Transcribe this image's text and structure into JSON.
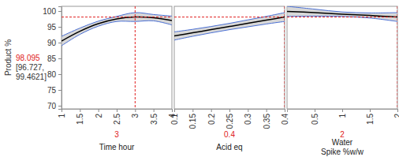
{
  "chart_data": {
    "type": "line",
    "ylabel": "Product %",
    "ylim": [
      69,
      101.5
    ],
    "yticks": [
      70,
      75,
      80,
      85,
      90,
      95,
      100
    ],
    "prediction": 98.095,
    "prediction_label": "98.095",
    "interval_label": [
      "[96.727,",
      "99.4621]"
    ],
    "color": "#000000",
    "band_color": "#4a6fd4",
    "marker_color": "#e02020",
    "panels": [
      {
        "xlabel": [
          "Time hour"
        ],
        "xlim": [
          1,
          4
        ],
        "xticks": [
          1,
          1.5,
          2,
          2.5,
          3,
          3.5,
          4
        ],
        "x": [
          1,
          1.5,
          2,
          2.5,
          3,
          3.5,
          4
        ],
        "values": [
          90.5,
          93.6,
          96.0,
          97.5,
          98.1,
          97.9,
          97.0
        ],
        "lower": [
          89.0,
          92.6,
          95.2,
          96.7,
          96.7,
          96.9,
          95.6
        ],
        "upper": [
          92.0,
          94.6,
          96.8,
          98.3,
          99.5,
          98.9,
          98.4
        ],
        "current": 3
      },
      {
        "xlabel": [
          "Acid eq"
        ],
        "xlim": [
          0.1,
          0.4
        ],
        "xticks": [
          0.1,
          0.15,
          0.2,
          0.25,
          0.3,
          0.35,
          0.4
        ],
        "x": [
          0.1,
          0.15,
          0.2,
          0.25,
          0.3,
          0.35,
          0.4
        ],
        "values": [
          92.1,
          93.1,
          94.1,
          95.1,
          96.1,
          97.1,
          98.1
        ],
        "lower": [
          90.8,
          92.0,
          93.1,
          94.1,
          95.0,
          95.9,
          96.7
        ],
        "upper": [
          93.4,
          94.2,
          95.1,
          96.1,
          97.2,
          98.3,
          99.5
        ],
        "current": 0.4
      },
      {
        "xlabel": [
          "Water",
          "Spike %w/w"
        ],
        "xlim": [
          0,
          2
        ],
        "xticks": [
          0.5,
          1,
          1.5,
          2
        ],
        "x": [
          0,
          0.5,
          1,
          1.5,
          2
        ],
        "values": [
          99.9,
          99.5,
          99.0,
          98.6,
          98.1
        ],
        "lower": [
          98.3,
          98.4,
          98.3,
          97.8,
          96.7
        ],
        "upper": [
          101.5,
          100.6,
          99.7,
          99.4,
          99.5
        ],
        "current": 2
      }
    ]
  }
}
